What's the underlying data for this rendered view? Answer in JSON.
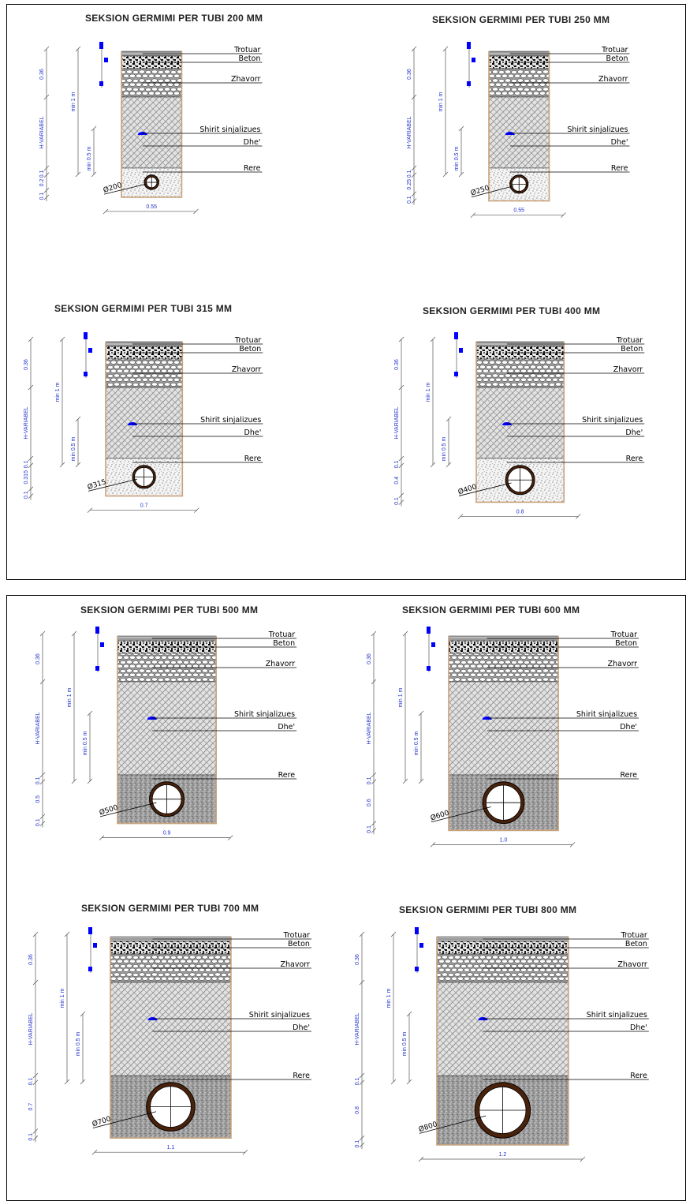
{
  "labels": {
    "trotuar": "Trotuar",
    "beton": "Beton",
    "zhavorr": "Zhavorr",
    "shirit": "Shirit sinjalizues",
    "dhe": "Dhe'",
    "rere": "Rere"
  },
  "dims": {
    "top": "0.36",
    "hvar": "H-VARIABEL",
    "min1": "min 1 m",
    "min05": "min 0.5 m",
    "bed": "0.1"
  },
  "colors": {
    "wall": "#c8a27a",
    "marker": "#0000ff",
    "dim_text": "#2233cc",
    "pipe_wall": "#4a220c"
  },
  "sheets": [
    {
      "sections": [
        {
          "title": "SEKSION GERMIMI PER TUBI 200 MM",
          "pipe_label": "Ø200",
          "sand_height": "0.2",
          "width_label": "0.55"
        },
        {
          "title": "SEKSION GERMIMI PER TUBI 250 MM",
          "pipe_label": "Ø250",
          "sand_height": "0.25",
          "width_label": "0.55"
        },
        {
          "title": "SEKSION GERMIMI PER TUBI 315 MM",
          "pipe_label": "Ø315",
          "sand_height": "0.315",
          "width_label": "0.7"
        },
        {
          "title": "SEKSION GERMIMI PER TUBI 400 MM",
          "pipe_label": "Ø400",
          "sand_height": "0.4",
          "width_label": "0.8"
        }
      ]
    },
    {
      "sections": [
        {
          "title": "SEKSION GERMIMI PER TUBI 500 MM",
          "pipe_label": "Ø500",
          "sand_height": "0.5",
          "width_label": "0.9"
        },
        {
          "title": "SEKSION GERMIMI PER TUBI 600 MM",
          "pipe_label": "Ø600",
          "sand_height": "0.6",
          "width_label": "1.0"
        },
        {
          "title": "SEKSION GERMIMI PER TUBI 700 MM",
          "pipe_label": "Ø700",
          "sand_height": "0.7",
          "width_label": "1.1"
        },
        {
          "title": "SEKSION GERMIMI PER TUBI 800 MM",
          "pipe_label": "Ø800",
          "sand_height": "0.8",
          "width_label": "1.2"
        }
      ]
    }
  ]
}
